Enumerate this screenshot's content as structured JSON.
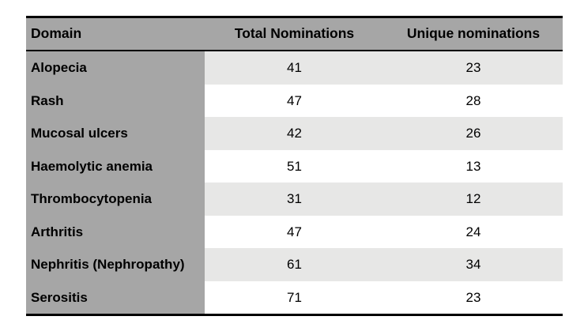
{
  "table": {
    "header": {
      "domain": "Domain",
      "total": "Total Nominations",
      "unique": "Unique nominations"
    },
    "rows": [
      {
        "domain": "Alopecia",
        "total": "41",
        "unique": "23"
      },
      {
        "domain": "Rash",
        "total": "47",
        "unique": "28"
      },
      {
        "domain": "Mucosal ulcers",
        "total": "42",
        "unique": "26"
      },
      {
        "domain": "Haemolytic anemia",
        "total": "51",
        "unique": "13"
      },
      {
        "domain": "Thrombocytopenia",
        "total": "31",
        "unique": "12"
      },
      {
        "domain": "Arthritis",
        "total": "47",
        "unique": "24"
      },
      {
        "domain": "Nephritis (Nephropathy)",
        "total": "61",
        "unique": "34"
      },
      {
        "domain": "Serositis",
        "total": "71",
        "unique": "23"
      }
    ],
    "colors": {
      "header_bg": "#a6a6a6",
      "domain_column_bg": "#a6a6a6",
      "stripe_row_bg": "#e7e7e6",
      "plain_row_bg": "#ffffff",
      "border": "#000000",
      "text": "#000000"
    }
  },
  "chart_data": {
    "type": "table",
    "columns": [
      "Domain",
      "Total Nominations",
      "Unique nominations"
    ],
    "rows": [
      [
        "Alopecia",
        41,
        23
      ],
      [
        "Rash",
        47,
        28
      ],
      [
        "Mucosal ulcers",
        42,
        26
      ],
      [
        "Haemolytic anemia",
        51,
        13
      ],
      [
        "Thrombocytopenia",
        31,
        12
      ],
      [
        "Arthritis",
        47,
        24
      ],
      [
        "Nephritis (Nephropathy)",
        61,
        34
      ],
      [
        "Serositis",
        71,
        23
      ]
    ]
  }
}
